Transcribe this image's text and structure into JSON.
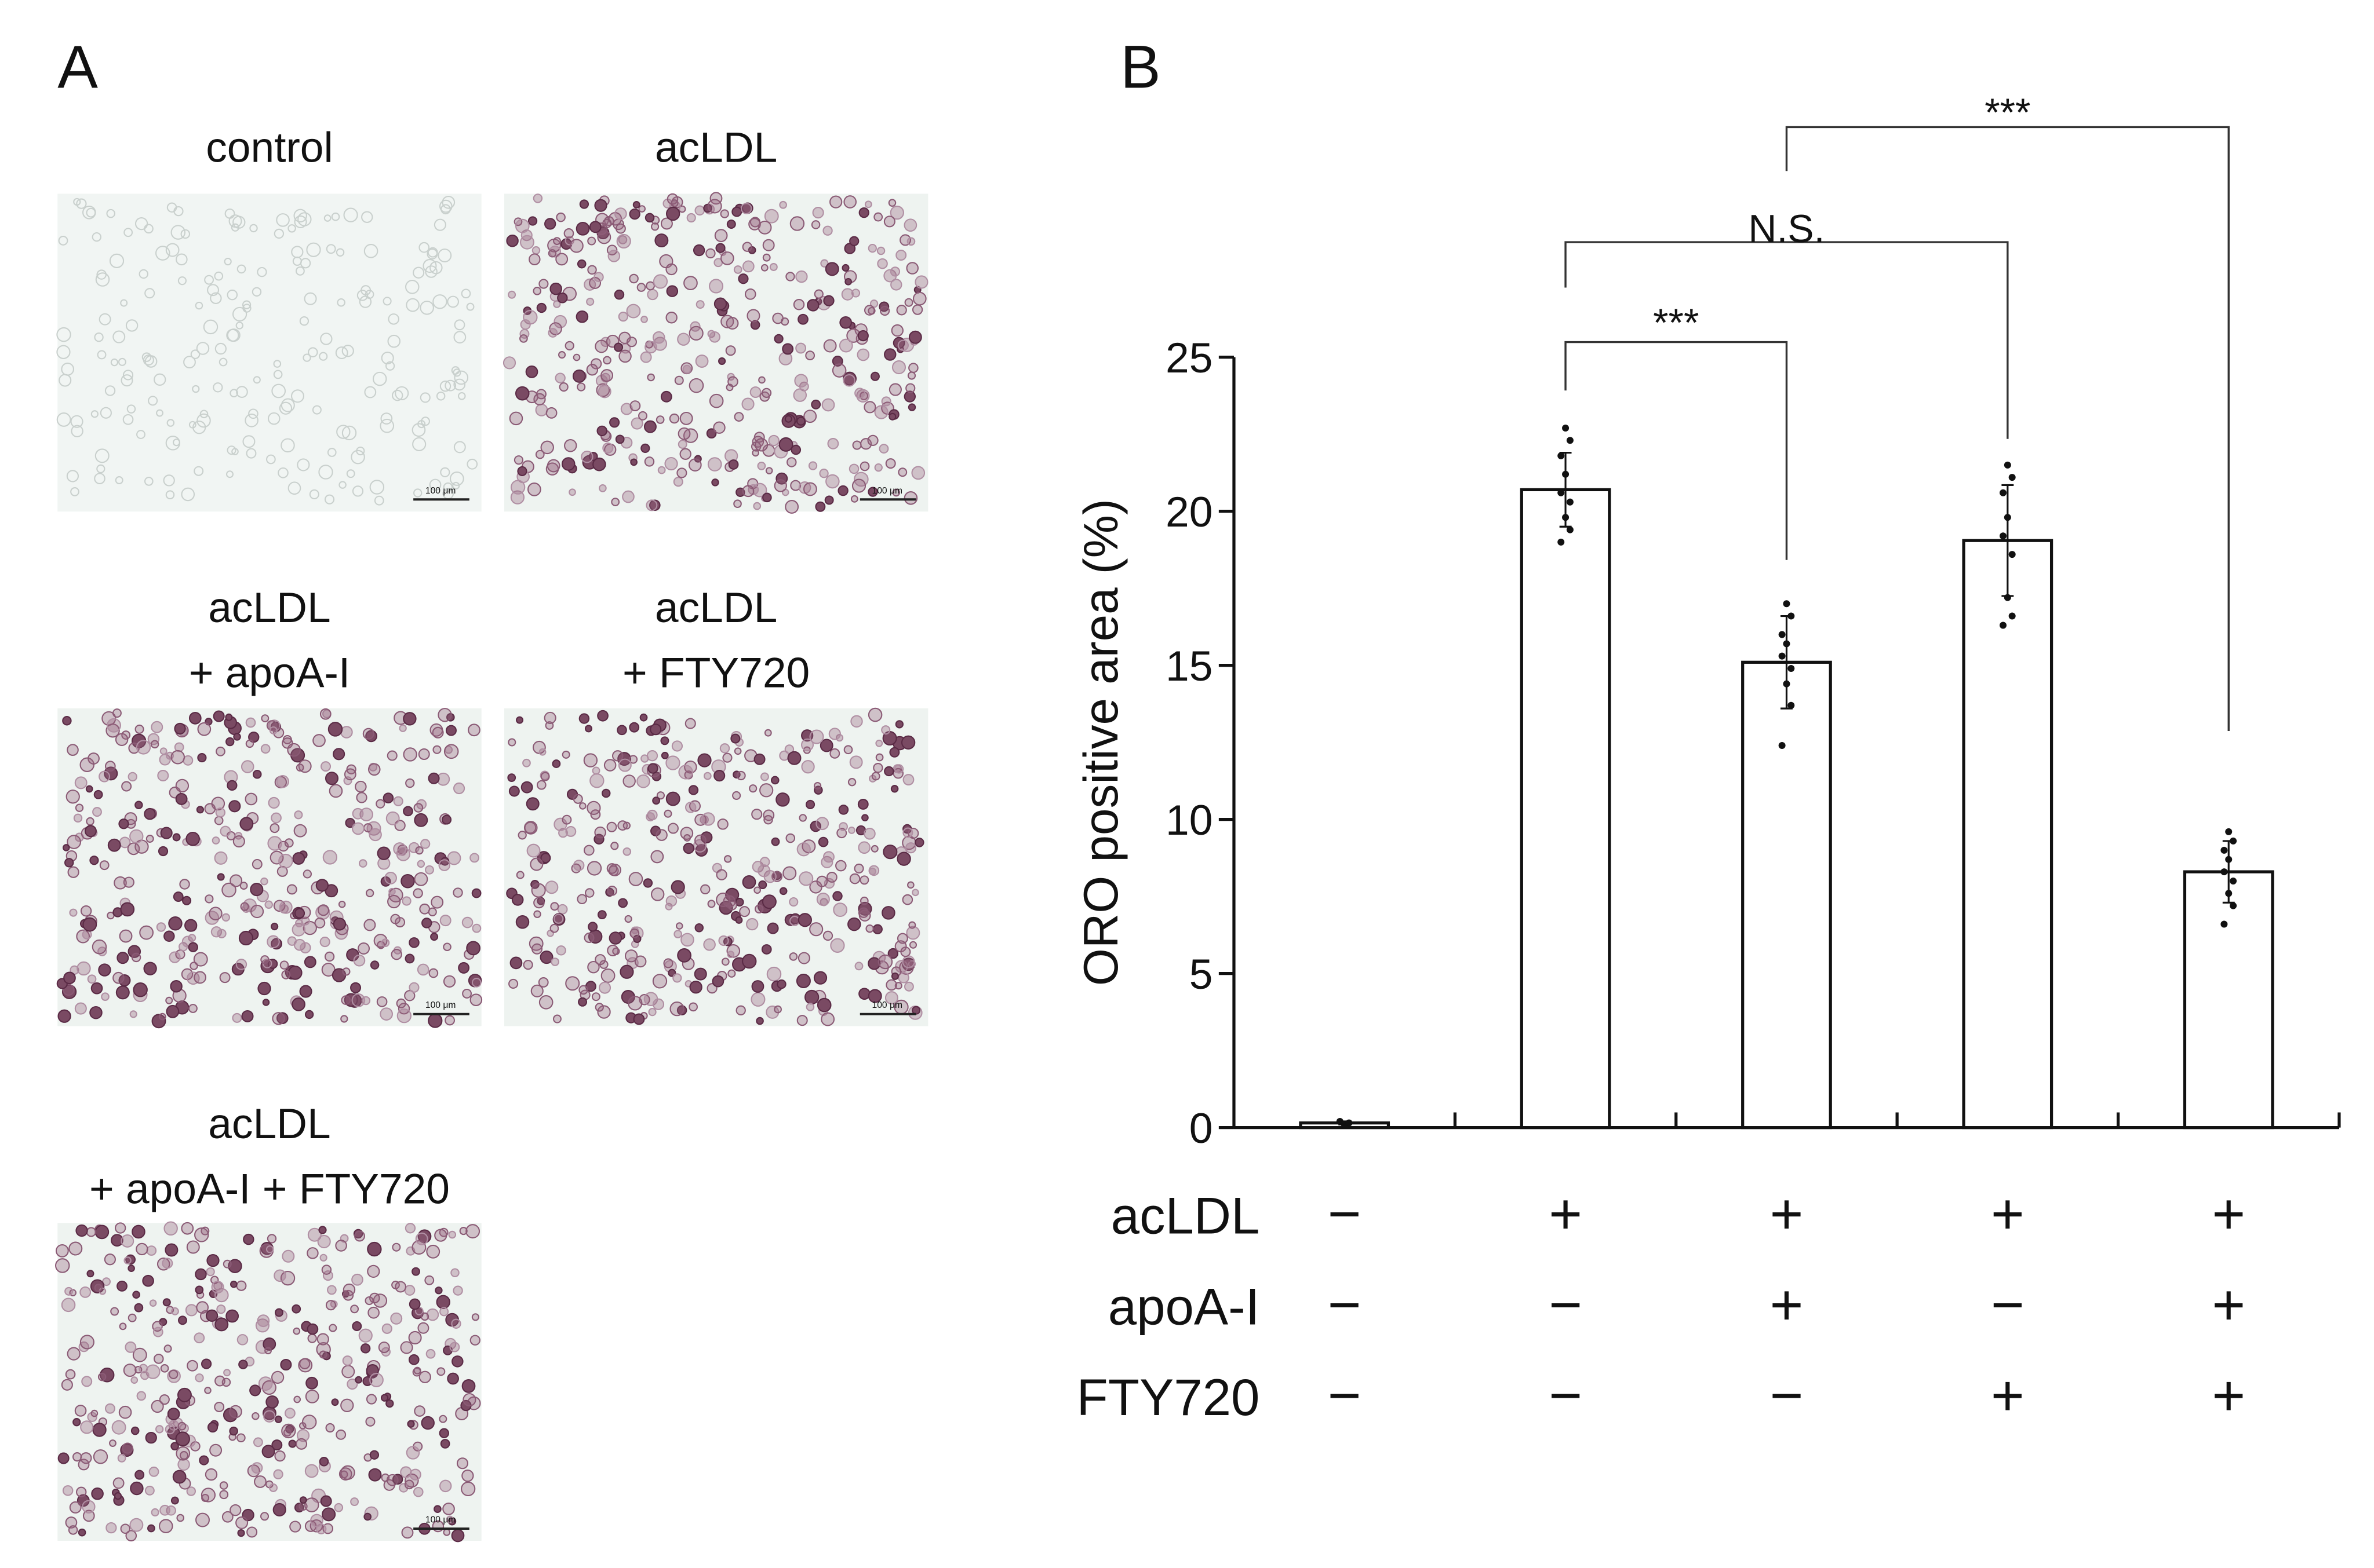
{
  "panel_a": {
    "label": "A",
    "images": [
      {
        "title": [
          "control"
        ]
      },
      {
        "title": [
          "acLDL"
        ]
      },
      {
        "title": [
          "acLDL",
          "+ apoA-I"
        ]
      },
      {
        "title": [
          "acLDL",
          "+ FTY720"
        ]
      },
      {
        "title": [
          "acLDL",
          "+ apoA-I + FTY720"
        ]
      }
    ],
    "scale_bar_label": "100 μm"
  },
  "chart_data": {
    "type": "bar",
    "panel_label": "B",
    "ylabel": "ORO positive area (%)",
    "categories": [
      null,
      null,
      null,
      null,
      null
    ],
    "values": [
      0.15,
      20.7,
      15.1,
      19.05,
      8.3
    ],
    "errors": [
      0.05,
      1.2,
      1.5,
      1.8,
      1.0
    ],
    "points": [
      [
        0.1,
        0.15,
        0.2
      ],
      [
        22.7,
        22.3,
        21.8,
        21.2,
        20.6,
        20.3,
        19.8,
        19.4,
        19.0
      ],
      [
        17.0,
        16.6,
        16.0,
        15.7,
        15.3,
        14.9,
        14.4,
        13.7,
        12.4
      ],
      [
        21.5,
        21.1,
        20.6,
        19.8,
        19.2,
        18.6,
        17.2,
        16.6,
        16.3
      ],
      [
        9.6,
        9.3,
        9.0,
        8.7,
        8.3,
        8.0,
        7.6,
        7.2,
        6.6
      ]
    ],
    "color": "#ffffff",
    "ylim": [
      0,
      25
    ],
    "yticks": [
      0,
      5,
      10,
      15,
      20,
      25
    ],
    "annotations": [
      "***",
      "N.S.",
      "***"
    ],
    "conditions": [
      {
        "name": "acLDL",
        "values": [
          "−",
          "+",
          "+",
          "+",
          "+"
        ]
      },
      {
        "name": "apoA-I",
        "values": [
          "−",
          "−",
          "+",
          "−",
          "+"
        ]
      },
      {
        "name": "FTY720",
        "values": [
          "−",
          "−",
          "−",
          "+",
          "+"
        ]
      }
    ]
  }
}
